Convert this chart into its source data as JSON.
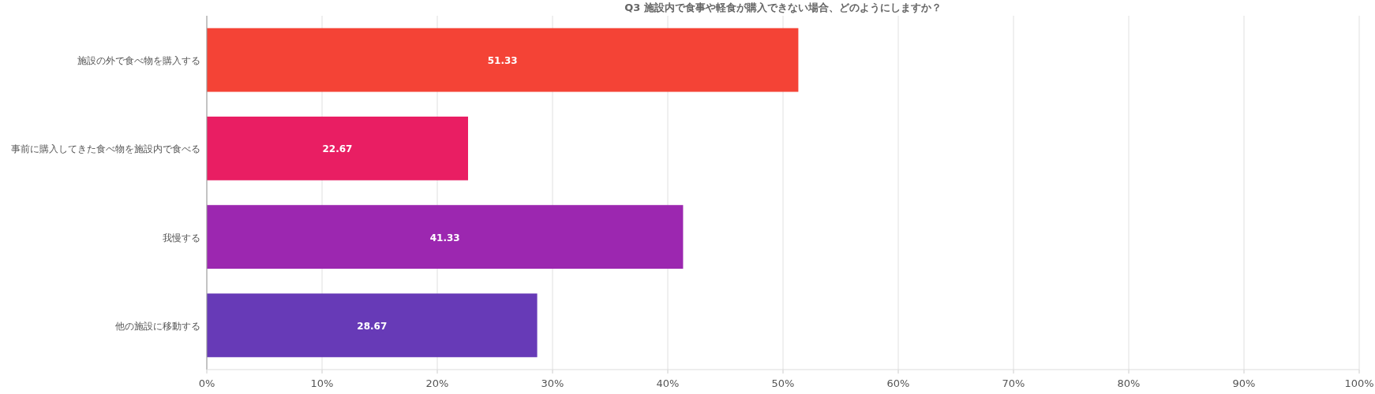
{
  "chart_data": {
    "type": "bar",
    "orientation": "horizontal",
    "title": "Q3 施設内で食事や軽食が購入できない場合、どのようにしますか？",
    "categories": [
      "施設の外で食べ物を購入する",
      "事前に購入してきた食べ物を施設内で食べる",
      "我慢する",
      "他の施設に移動する"
    ],
    "values": [
      51.33,
      22.67,
      41.33,
      28.67
    ],
    "colors": [
      "#f44336",
      "#e91e63",
      "#9c27b0",
      "#673ab7"
    ],
    "xlim": [
      0,
      100
    ],
    "xticks": [
      {
        "value": 0,
        "label": "0%"
      },
      {
        "value": 10,
        "label": "10%"
      },
      {
        "value": 20,
        "label": "20%"
      },
      {
        "value": 30,
        "label": "30%"
      },
      {
        "value": 40,
        "label": "40%"
      },
      {
        "value": 50,
        "label": "50%"
      },
      {
        "value": 60,
        "label": "60%"
      },
      {
        "value": 70,
        "label": "70%"
      },
      {
        "value": 80,
        "label": "80%"
      },
      {
        "value": 90,
        "label": "90%"
      },
      {
        "value": 100,
        "label": "100%"
      }
    ],
    "grid": "x",
    "data_labels": true
  }
}
